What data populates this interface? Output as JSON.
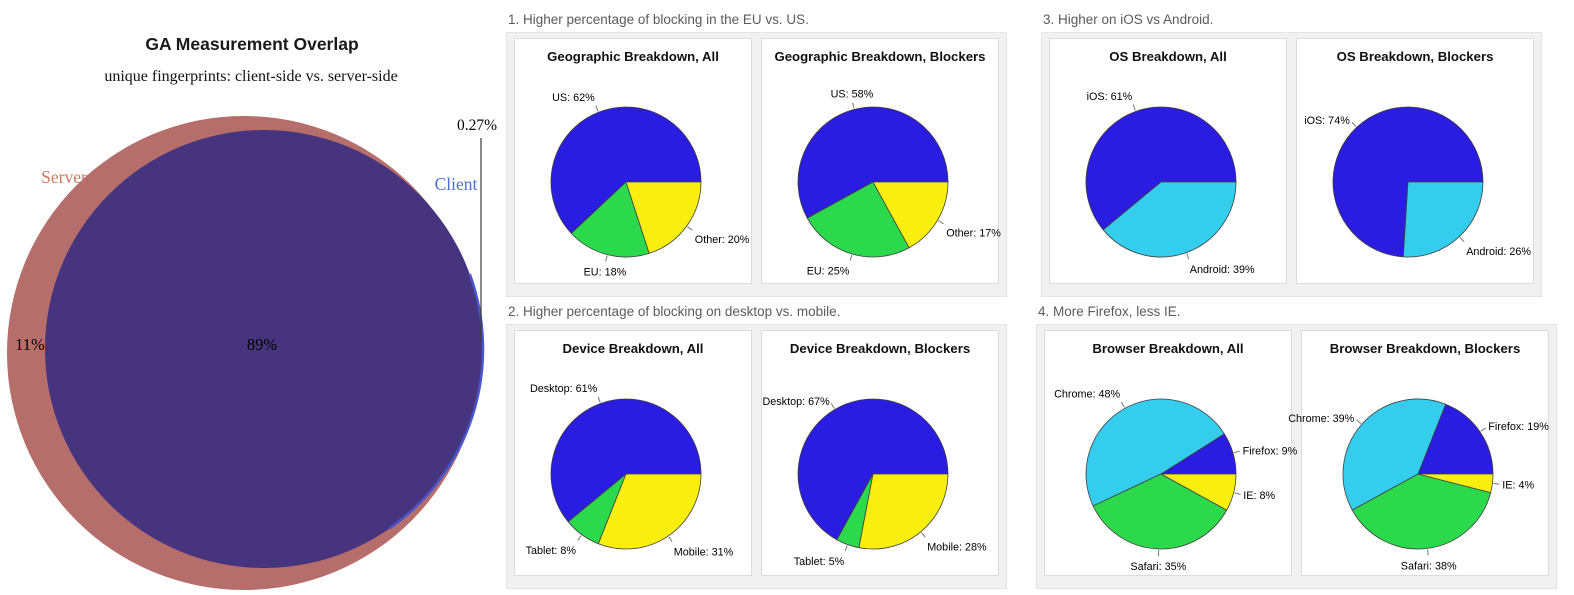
{
  "groups": [
    {
      "heading": "1. Higher percentage of blocking in the EU vs. US."
    },
    {
      "heading": "2. Higher percentage of blocking on desktop vs. mobile."
    },
    {
      "heading": "3. Higher on iOS vs Android."
    },
    {
      "heading": "4. More Firefox, less IE."
    }
  ],
  "pie_colors": {
    "blue": "#2a1ce0",
    "cyan": "#35cdee",
    "green": "#2cd94d",
    "yellow": "#f8ef0e"
  },
  "chart_data": [
    {
      "type": "venn",
      "title": "GA Measurement Overlap",
      "subtitle": "unique fingerprints: client-side vs. server-side",
      "sets": [
        {
          "label": "Server",
          "only_pct": "11%"
        },
        {
          "label": "Client",
          "only_pct": "0.27%"
        }
      ],
      "overlap_pct": "89%",
      "colors": {
        "server": "#b66e6b",
        "overlap": "#46357e",
        "client_edge": "#4a55c8",
        "server_label": "#cb7a60",
        "client_label": "#4e6ed3"
      }
    },
    {
      "type": "pie",
      "group": 1,
      "title": "Geographic Breakdown, All",
      "start_angle": 0,
      "direction": "counterclockwise",
      "slices": [
        {
          "label": "US",
          "value": 62,
          "color": "#2a1ce0"
        },
        {
          "label": "EU",
          "value": 18,
          "color": "#2cd94d"
        },
        {
          "label": "Other",
          "value": 20,
          "color": "#f8ef0e"
        }
      ]
    },
    {
      "type": "pie",
      "group": 1,
      "title": "Geographic Breakdown, Blockers",
      "start_angle": 0,
      "direction": "counterclockwise",
      "slices": [
        {
          "label": "US",
          "value": 58,
          "color": "#2a1ce0"
        },
        {
          "label": "EU",
          "value": 25,
          "color": "#2cd94d"
        },
        {
          "label": "Other",
          "value": 17,
          "color": "#f8ef0e"
        }
      ]
    },
    {
      "type": "pie",
      "group": 2,
      "title": "Device Breakdown, All",
      "start_angle": 0,
      "direction": "counterclockwise",
      "slices": [
        {
          "label": "Desktop",
          "value": 61,
          "color": "#2a1ce0"
        },
        {
          "label": "Tablet",
          "value": 8,
          "color": "#2cd94d"
        },
        {
          "label": "Mobile",
          "value": 31,
          "color": "#f8ef0e"
        }
      ]
    },
    {
      "type": "pie",
      "group": 2,
      "title": "Device Breakdown, Blockers",
      "start_angle": 0,
      "direction": "counterclockwise",
      "slices": [
        {
          "label": "Desktop",
          "value": 67,
          "color": "#2a1ce0"
        },
        {
          "label": "Tablet",
          "value": 5,
          "color": "#2cd94d"
        },
        {
          "label": "Mobile",
          "value": 28,
          "color": "#f8ef0e"
        }
      ]
    },
    {
      "type": "pie",
      "group": 3,
      "title": "OS Breakdown, All",
      "start_angle": 0,
      "direction": "counterclockwise",
      "slices": [
        {
          "label": "iOS",
          "value": 61,
          "color": "#2a1ce0"
        },
        {
          "label": "Android",
          "value": 39,
          "color": "#35cdee"
        }
      ]
    },
    {
      "type": "pie",
      "group": 3,
      "title": "OS Breakdown, Blockers",
      "start_angle": 0,
      "direction": "counterclockwise",
      "slices": [
        {
          "label": "iOS",
          "value": 74,
          "color": "#2a1ce0"
        },
        {
          "label": "Android",
          "value": 26,
          "color": "#35cdee"
        }
      ]
    },
    {
      "type": "pie",
      "group": 4,
      "title": "Browser Breakdown, All",
      "start_angle": 0,
      "direction": "counterclockwise",
      "slices": [
        {
          "label": "Firefox",
          "value": 9,
          "color": "#2a1ce0"
        },
        {
          "label": "Chrome",
          "value": 48,
          "color": "#35cdee"
        },
        {
          "label": "Safari",
          "value": 35,
          "color": "#2cd94d"
        },
        {
          "label": "IE",
          "value": 8,
          "color": "#f8ef0e"
        }
      ]
    },
    {
      "type": "pie",
      "group": 4,
      "title": "Browser Breakdown, Blockers",
      "start_angle": 0,
      "direction": "counterclockwise",
      "slices": [
        {
          "label": "Firefox",
          "value": 19,
          "color": "#2a1ce0"
        },
        {
          "label": "Chrome",
          "value": 39,
          "color": "#35cdee"
        },
        {
          "label": "Safari",
          "value": 38,
          "color": "#2cd94d"
        },
        {
          "label": "IE",
          "value": 4,
          "color": "#f8ef0e"
        }
      ]
    }
  ]
}
